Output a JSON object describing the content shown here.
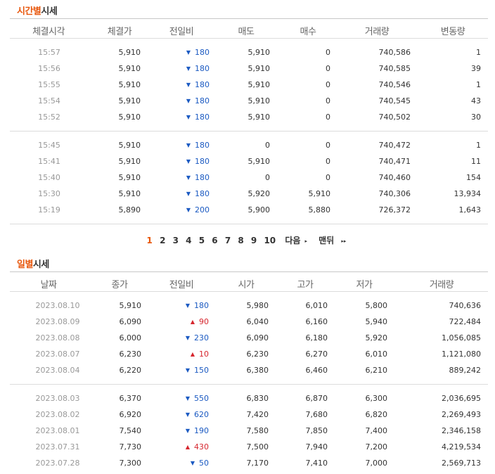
{
  "time_section": {
    "title_highlight": "시간별",
    "title_rest": "시세",
    "headers": [
      "체결시각",
      "체결가",
      "전일비",
      "매도",
      "매수",
      "거래량",
      "변동량"
    ],
    "groups": [
      [
        {
          "time": "15:57",
          "price": "5,910",
          "dir": "down",
          "change": "180",
          "ask": "5,910",
          "bid": "0",
          "volume": "740,586",
          "delta": "1"
        },
        {
          "time": "15:56",
          "price": "5,910",
          "dir": "down",
          "change": "180",
          "ask": "5,910",
          "bid": "0",
          "volume": "740,585",
          "delta": "39"
        },
        {
          "time": "15:55",
          "price": "5,910",
          "dir": "down",
          "change": "180",
          "ask": "5,910",
          "bid": "0",
          "volume": "740,546",
          "delta": "1"
        },
        {
          "time": "15:54",
          "price": "5,910",
          "dir": "down",
          "change": "180",
          "ask": "5,910",
          "bid": "0",
          "volume": "740,545",
          "delta": "43"
        },
        {
          "time": "15:52",
          "price": "5,910",
          "dir": "down",
          "change": "180",
          "ask": "5,910",
          "bid": "0",
          "volume": "740,502",
          "delta": "30"
        }
      ],
      [
        {
          "time": "15:45",
          "price": "5,910",
          "dir": "down",
          "change": "180",
          "ask": "0",
          "bid": "0",
          "volume": "740,472",
          "delta": "1"
        },
        {
          "time": "15:41",
          "price": "5,910",
          "dir": "down",
          "change": "180",
          "ask": "5,910",
          "bid": "0",
          "volume": "740,471",
          "delta": "11"
        },
        {
          "time": "15:40",
          "price": "5,910",
          "dir": "down",
          "change": "180",
          "ask": "0",
          "bid": "0",
          "volume": "740,460",
          "delta": "154"
        },
        {
          "time": "15:30",
          "price": "5,910",
          "dir": "down",
          "change": "180",
          "ask": "5,920",
          "bid": "5,910",
          "volume": "740,306",
          "delta": "13,934"
        },
        {
          "time": "15:19",
          "price": "5,890",
          "dir": "down",
          "change": "200",
          "ask": "5,900",
          "bid": "5,880",
          "volume": "726,372",
          "delta": "1,643"
        }
      ]
    ]
  },
  "pagination": {
    "current": "1",
    "pages": [
      "2",
      "3",
      "4",
      "5",
      "6",
      "7",
      "8",
      "9",
      "10"
    ],
    "next_label": "다음",
    "last_label": "맨뒤",
    "next_glyph": "▸",
    "last_glyph": "▸▸"
  },
  "daily_section": {
    "title_highlight": "일별",
    "title_rest": "시세",
    "headers": [
      "날짜",
      "종가",
      "전일비",
      "시가",
      "고가",
      "저가",
      "거래량"
    ],
    "groups": [
      [
        {
          "date": "2023.08.10",
          "close": "5,910",
          "dir": "down",
          "change": "180",
          "open": "5,980",
          "high": "6,010",
          "low": "5,800",
          "volume": "740,636"
        },
        {
          "date": "2023.08.09",
          "close": "6,090",
          "dir": "up",
          "change": "90",
          "open": "6,040",
          "high": "6,160",
          "low": "5,940",
          "volume": "722,484"
        },
        {
          "date": "2023.08.08",
          "close": "6,000",
          "dir": "down",
          "change": "230",
          "open": "6,090",
          "high": "6,180",
          "low": "5,920",
          "volume": "1,056,085"
        },
        {
          "date": "2023.08.07",
          "close": "6,230",
          "dir": "up",
          "change": "10",
          "open": "6,230",
          "high": "6,270",
          "low": "6,010",
          "volume": "1,121,080"
        },
        {
          "date": "2023.08.04",
          "close": "6,220",
          "dir": "down",
          "change": "150",
          "open": "6,380",
          "high": "6,460",
          "low": "6,210",
          "volume": "889,242"
        }
      ],
      [
        {
          "date": "2023.08.03",
          "close": "6,370",
          "dir": "down",
          "change": "550",
          "open": "6,830",
          "high": "6,870",
          "low": "6,300",
          "volume": "2,036,695"
        },
        {
          "date": "2023.08.02",
          "close": "6,920",
          "dir": "down",
          "change": "620",
          "open": "7,420",
          "high": "7,680",
          "low": "6,820",
          "volume": "2,269,493"
        },
        {
          "date": "2023.08.01",
          "close": "7,540",
          "dir": "down",
          "change": "190",
          "open": "7,580",
          "high": "7,850",
          "low": "7,400",
          "volume": "2,346,158"
        },
        {
          "date": "2023.07.31",
          "close": "7,730",
          "dir": "up",
          "change": "430",
          "open": "7,500",
          "high": "7,940",
          "low": "7,200",
          "volume": "4,219,534"
        },
        {
          "date": "2023.07.28",
          "close": "7,300",
          "dir": "down",
          "change": "50",
          "open": "7,170",
          "high": "7,410",
          "low": "7,000",
          "volume": "2,569,713"
        }
      ]
    ]
  },
  "colors": {
    "accent": "#e8570c",
    "down": "#1b5ac2",
    "up": "#d6262e"
  },
  "icons": {
    "down": "down-triangle-icon",
    "up": "up-triangle-icon"
  }
}
